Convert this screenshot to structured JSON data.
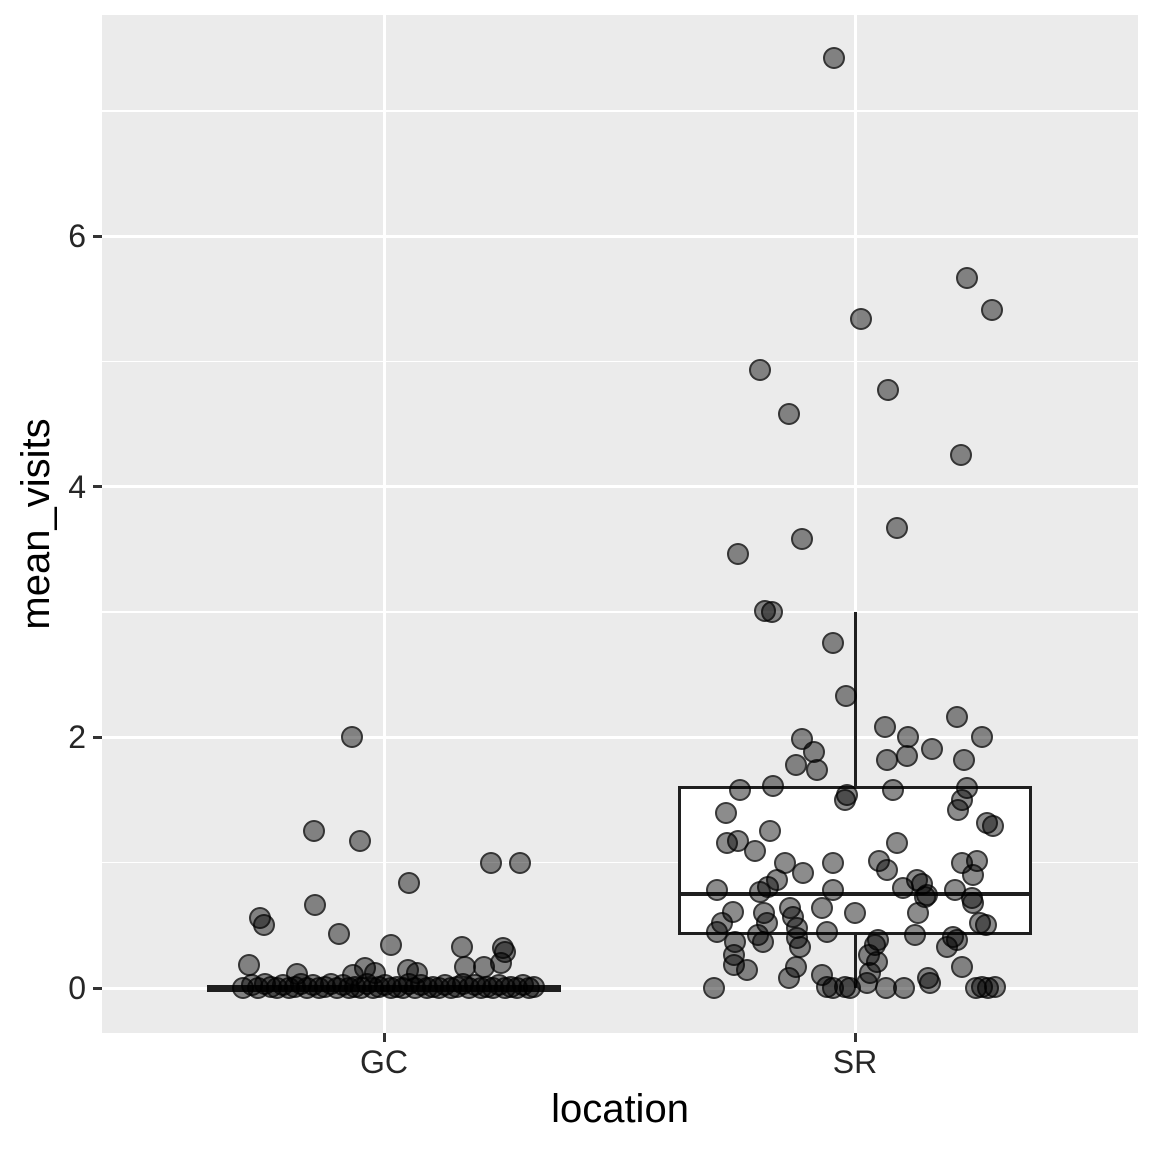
{
  "chart_data": {
    "type": "boxplot",
    "subtype": "boxplot-with-jittered-points",
    "title": "",
    "xlabel": "location",
    "ylabel": "mean_visits",
    "categories": [
      "GC",
      "SR"
    ],
    "legend": "none",
    "grid": "on",
    "y_axis": {
      "ticks": [
        0,
        2,
        4,
        6
      ],
      "minor_ticks": [
        1,
        3,
        5,
        7
      ],
      "range": [
        -0.36,
        7.78
      ]
    },
    "boxes": [
      {
        "category": "GC",
        "whisker_low": 0,
        "q1": 0,
        "median": 0,
        "q3": 0,
        "whisker_high": 0,
        "collapsed": true
      },
      {
        "category": "SR",
        "whisker_low": 0,
        "q1": 0.42,
        "median": 0.75,
        "q3": 1.61,
        "whisker_high": 3.0,
        "collapsed": false
      }
    ],
    "points_note": "each point = [x_position_px, mean_visits_value]",
    "points": {
      "GC": [
        [
          352,
          2.0
        ],
        [
          314,
          1.25
        ],
        [
          360,
          1.17
        ],
        [
          491,
          1.0
        ],
        [
          520,
          1.0
        ],
        [
          409,
          0.84
        ],
        [
          315,
          0.66
        ],
        [
          260,
          0.56
        ],
        [
          264,
          0.5
        ],
        [
          339,
          0.43
        ],
        [
          391,
          0.34
        ],
        [
          462,
          0.33
        ],
        [
          503,
          0.32
        ],
        [
          505,
          0.29
        ],
        [
          501,
          0.2
        ],
        [
          249,
          0.18
        ],
        [
          484,
          0.17
        ],
        [
          465,
          0.17
        ],
        [
          365,
          0.16
        ],
        [
          408,
          0.14
        ],
        [
          417,
          0.12
        ],
        [
          375,
          0.12
        ],
        [
          297,
          0.11
        ],
        [
          353,
          0.1
        ],
        [
          243,
          0.0
        ],
        [
          252,
          0.02
        ],
        [
          258,
          0.0
        ],
        [
          265,
          0.03
        ],
        [
          271,
          0.01
        ],
        [
          277,
          0.0
        ],
        [
          283,
          0.02
        ],
        [
          289,
          0.0
        ],
        [
          295,
          0.01
        ],
        [
          301,
          0.03
        ],
        [
          307,
          0.0
        ],
        [
          313,
          0.02
        ],
        [
          319,
          0.0
        ],
        [
          325,
          0.01
        ],
        [
          331,
          0.03
        ],
        [
          337,
          0.0
        ],
        [
          343,
          0.02
        ],
        [
          349,
          0.0
        ],
        [
          355,
          0.01
        ],
        [
          361,
          0.0
        ],
        [
          367,
          0.03
        ],
        [
          373,
          0.0
        ],
        [
          379,
          0.01
        ],
        [
          385,
          0.02
        ],
        [
          391,
          0.0
        ],
        [
          397,
          0.01
        ],
        [
          403,
          0.0
        ],
        [
          409,
          0.03
        ],
        [
          415,
          0.0
        ],
        [
          421,
          0.02
        ],
        [
          427,
          0.0
        ],
        [
          433,
          0.01
        ],
        [
          439,
          0.0
        ],
        [
          445,
          0.02
        ],
        [
          451,
          0.0
        ],
        [
          457,
          0.01
        ],
        [
          463,
          0.03
        ],
        [
          469,
          0.0
        ],
        [
          475,
          0.02
        ],
        [
          481,
          0.0
        ],
        [
          487,
          0.01
        ],
        [
          493,
          0.0
        ],
        [
          499,
          0.02
        ],
        [
          505,
          0.0
        ],
        [
          511,
          0.01
        ],
        [
          517,
          0.0
        ],
        [
          523,
          0.02
        ],
        [
          529,
          0.0
        ],
        [
          534,
          0.01
        ]
      ],
      "SR": [
        [
          834,
          7.42
        ],
        [
          967,
          5.67
        ],
        [
          992,
          5.41
        ],
        [
          861,
          5.34
        ],
        [
          760,
          4.93
        ],
        [
          888,
          4.77
        ],
        [
          789,
          4.58
        ],
        [
          961,
          4.25
        ],
        [
          897,
          3.67
        ],
        [
          802,
          3.58
        ],
        [
          738,
          3.46
        ],
        [
          765,
          3.01
        ],
        [
          772,
          3.0
        ],
        [
          833,
          2.75
        ],
        [
          846,
          2.33
        ],
        [
          957,
          2.16
        ],
        [
          885,
          2.08
        ],
        [
          908,
          2.0
        ],
        [
          982,
          2.0
        ],
        [
          802,
          1.99
        ],
        [
          932,
          1.91
        ],
        [
          814,
          1.88
        ],
        [
          907,
          1.85
        ],
        [
          887,
          1.82
        ],
        [
          964,
          1.82
        ],
        [
          796,
          1.78
        ],
        [
          817,
          1.74
        ],
        [
          773,
          1.61
        ],
        [
          967,
          1.6
        ],
        [
          740,
          1.58
        ],
        [
          893,
          1.58
        ],
        [
          847,
          1.54
        ],
        [
          845,
          1.5
        ],
        [
          962,
          1.5
        ],
        [
          958,
          1.42
        ],
        [
          726,
          1.4
        ],
        [
          987,
          1.32
        ],
        [
          993,
          1.29
        ],
        [
          770,
          1.25
        ],
        [
          738,
          1.17
        ],
        [
          727,
          1.16
        ],
        [
          897,
          1.16
        ],
        [
          755,
          1.09
        ],
        [
          879,
          1.01
        ],
        [
          977,
          1.01
        ],
        [
          785,
          1.0
        ],
        [
          833,
          1.0
        ],
        [
          962,
          1.0
        ],
        [
          887,
          0.94
        ],
        [
          803,
          0.92
        ],
        [
          973,
          0.9
        ],
        [
          917,
          0.86
        ],
        [
          777,
          0.86
        ],
        [
          922,
          0.83
        ],
        [
          768,
          0.81
        ],
        [
          903,
          0.8
        ],
        [
          717,
          0.78
        ],
        [
          833,
          0.78
        ],
        [
          955,
          0.78
        ],
        [
          760,
          0.77
        ],
        [
          927,
          0.74
        ],
        [
          925,
          0.73
        ],
        [
          972,
          0.72
        ],
        [
          973,
          0.68
        ],
        [
          790,
          0.64
        ],
        [
          822,
          0.64
        ],
        [
          733,
          0.61
        ],
        [
          764,
          0.6
        ],
        [
          855,
          0.6
        ],
        [
          918,
          0.6
        ],
        [
          793,
          0.57
        ],
        [
          722,
          0.52
        ],
        [
          767,
          0.52
        ],
        [
          980,
          0.52
        ],
        [
          986,
          0.5
        ],
        [
          797,
          0.48
        ],
        [
          717,
          0.45
        ],
        [
          827,
          0.45
        ],
        [
          758,
          0.42
        ],
        [
          915,
          0.42
        ],
        [
          953,
          0.41
        ],
        [
          797,
          0.4
        ],
        [
          878,
          0.38
        ],
        [
          957,
          0.38
        ],
        [
          735,
          0.37
        ],
        [
          763,
          0.37
        ],
        [
          800,
          0.33
        ],
        [
          875,
          0.34
        ],
        [
          947,
          0.33
        ],
        [
          734,
          0.26
        ],
        [
          869,
          0.26
        ],
        [
          877,
          0.21
        ],
        [
          734,
          0.18
        ],
        [
          796,
          0.17
        ],
        [
          962,
          0.17
        ],
        [
          747,
          0.14
        ],
        [
          870,
          0.12
        ],
        [
          822,
          0.1
        ],
        [
          789,
          0.08
        ],
        [
          928,
          0.08
        ],
        [
          930,
          0.04
        ],
        [
          867,
          0.04
        ],
        [
          714,
          0.0
        ],
        [
          827,
          0.01
        ],
        [
          833,
          0.0
        ],
        [
          845,
          0.01
        ],
        [
          850,
          0.0
        ],
        [
          886,
          0.0
        ],
        [
          904,
          0.0
        ],
        [
          976,
          0.0
        ],
        [
          982,
          0.01
        ],
        [
          988,
          0.0
        ],
        [
          995,
          0.01
        ]
      ]
    },
    "colors": {
      "panel_bg": "#ebebeb",
      "grid": "#ffffff",
      "box_border": "#1f1f1f",
      "box_fill": "#ffffff",
      "point_fill": "rgba(0,0,0,0.45)",
      "point_border": "rgba(0,0,0,0.60)",
      "axis_text": "#262626",
      "axis_title": "#000000"
    }
  }
}
